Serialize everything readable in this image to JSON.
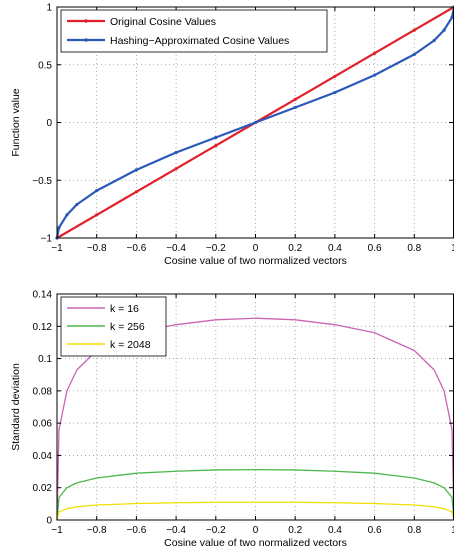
{
  "chart_data": [
    {
      "type": "line",
      "xlabel": "Cosine value of two normalized vectors",
      "ylabel": "Function value",
      "xlim": [
        -1,
        1
      ],
      "ylim": [
        -1,
        1
      ],
      "xticks": [
        "−1",
        "−0.8",
        "−0.6",
        "−0.4",
        "−0.2",
        "0",
        "0.2",
        "0.4",
        "0.6",
        "0.8",
        "1"
      ],
      "xtick_values": [
        -1,
        -0.8,
        -0.6,
        -0.4,
        -0.2,
        0,
        0.2,
        0.4,
        0.6,
        0.8,
        1
      ],
      "yticks": [
        "−1",
        "−0.5",
        "0",
        "0.5",
        "1"
      ],
      "ytick_values": [
        -1,
        -0.5,
        0,
        0.5,
        1
      ],
      "grid": true,
      "legend_position": "top-left",
      "series": [
        {
          "name": "Original Cosine Values",
          "color": "#e0202a",
          "x": [
            -1,
            -0.8,
            -0.6,
            -0.4,
            -0.2,
            0,
            0.2,
            0.4,
            0.6,
            0.8,
            1
          ],
          "y": [
            -1,
            -0.8,
            -0.6,
            -0.4,
            -0.2,
            0,
            0.2,
            0.4,
            0.6,
            0.8,
            1
          ]
        },
        {
          "name": "Hashing−Approximated Cosine Values",
          "color": "#2b59b8",
          "x": [
            -1,
            -0.99,
            -0.95,
            -0.9,
            -0.8,
            -0.6,
            -0.4,
            -0.2,
            0,
            0.2,
            0.4,
            0.6,
            0.8,
            0.9,
            0.95,
            0.99,
            1
          ],
          "y": [
            -1,
            -0.91,
            -0.8,
            -0.71,
            -0.59,
            -0.41,
            -0.26,
            -0.13,
            0,
            0.13,
            0.26,
            0.41,
            0.59,
            0.71,
            0.8,
            0.91,
            1
          ]
        }
      ]
    },
    {
      "type": "line",
      "xlabel": "Cosine value of two normalized vectors",
      "ylabel": "Standard deviation",
      "xlim": [
        -1,
        1
      ],
      "ylim": [
        0,
        0.14
      ],
      "xticks": [
        "−1",
        "−0.8",
        "−0.6",
        "−0.4",
        "−0.2",
        "0",
        "0.2",
        "0.4",
        "0.6",
        "0.8",
        "1"
      ],
      "xtick_values": [
        -1,
        -0.8,
        -0.6,
        -0.4,
        -0.2,
        0,
        0.2,
        0.4,
        0.6,
        0.8,
        1
      ],
      "yticks": [
        "0",
        "0.02",
        "0.04",
        "0.06",
        "0.08",
        "0.1",
        "0.12",
        "0.14"
      ],
      "ytick_values": [
        0,
        0.02,
        0.04,
        0.06,
        0.08,
        0.1,
        0.12,
        0.14
      ],
      "grid": true,
      "legend_position": "top-left",
      "series": [
        {
          "name": "k = 16",
          "color": "#c864b4",
          "x": [
            -1,
            -0.99,
            -0.95,
            -0.9,
            -0.8,
            -0.6,
            -0.4,
            -0.2,
            0,
            0.2,
            0.4,
            0.6,
            0.8,
            0.9,
            0.95,
            0.99,
            1
          ],
          "y": [
            0,
            0.056,
            0.08,
            0.093,
            0.105,
            0.116,
            0.121,
            0.124,
            0.125,
            0.124,
            0.121,
            0.116,
            0.105,
            0.093,
            0.08,
            0.056,
            0
          ]
        },
        {
          "name": "k = 256",
          "color": "#4cb84c",
          "x": [
            -1,
            -0.99,
            -0.95,
            -0.9,
            -0.8,
            -0.6,
            -0.4,
            -0.2,
            0,
            0.2,
            0.4,
            0.6,
            0.8,
            0.9,
            0.95,
            0.99,
            1
          ],
          "y": [
            0,
            0.014,
            0.02,
            0.023,
            0.026,
            0.029,
            0.0302,
            0.031,
            0.0312,
            0.031,
            0.0302,
            0.029,
            0.026,
            0.023,
            0.02,
            0.014,
            0
          ]
        },
        {
          "name": "k = 2048",
          "color": "#f0e000",
          "x": [
            -1,
            -0.99,
            -0.95,
            -0.9,
            -0.8,
            -0.6,
            -0.4,
            -0.2,
            0,
            0.2,
            0.4,
            0.6,
            0.8,
            0.9,
            0.95,
            0.99,
            1
          ],
          "y": [
            0,
            0.005,
            0.007,
            0.0082,
            0.0093,
            0.0102,
            0.0107,
            0.011,
            0.011,
            0.011,
            0.0107,
            0.0102,
            0.0093,
            0.0082,
            0.007,
            0.005,
            0
          ]
        }
      ]
    }
  ]
}
